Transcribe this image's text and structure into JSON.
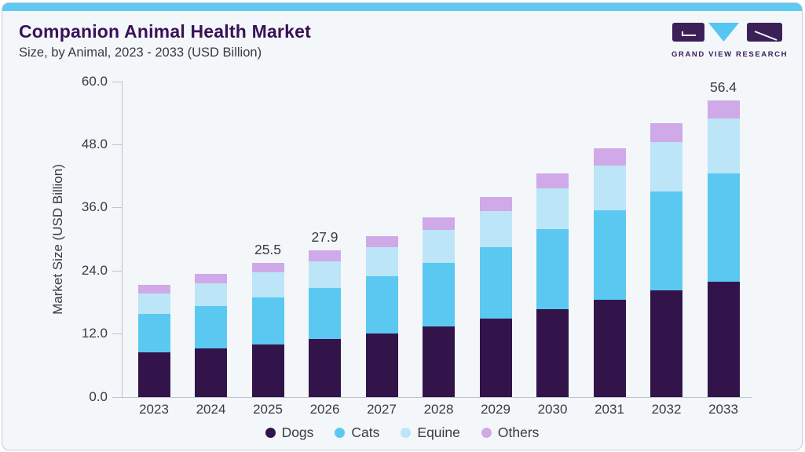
{
  "page": {
    "title": "Companion Animal Health Market",
    "subtitle": "Size, by Animal, 2023 - 2033 (USD Billion)",
    "brand": {
      "name": "GRAND VIEW RESEARCH"
    }
  },
  "colors": {
    "accent_bar": "#5ec9f2",
    "card_bg": "#f3f7fa",
    "card_border": "#c9cbd6",
    "title_text": "#3a1157",
    "body_text": "#3a3a43",
    "axis_line": "#bfc2cb",
    "dogs": "#32144b",
    "cats": "#5bc8f2",
    "equine": "#bde5f8",
    "others": "#d0a9e8",
    "logo_purple": "#3b2058",
    "logo_blue": "#55c6f0"
  },
  "chart_data": {
    "type": "bar",
    "stacked": true,
    "title": "Companion Animal Health Market",
    "subtitle": "Size, by Animal, 2023 - 2033 (USD Billion)",
    "xlabel": "",
    "ylabel": "Market Size (USD Billion)",
    "ylim": [
      0,
      60
    ],
    "ytick_values": [
      0,
      12,
      24,
      36,
      48,
      60
    ],
    "ytick_labels": [
      "0.0",
      "12.0",
      "24.0",
      "36.0",
      "48.0",
      "60.0"
    ],
    "grid": false,
    "legend_position": "bottom",
    "categories": [
      "2023",
      "2024",
      "2025",
      "2026",
      "2027",
      "2028",
      "2029",
      "2030",
      "2031",
      "2032",
      "2033"
    ],
    "series": [
      {
        "name": "Dogs",
        "color_key": "dogs",
        "values": [
          8.4,
          9.2,
          10.0,
          10.9,
          12.0,
          13.3,
          14.8,
          16.6,
          18.4,
          20.2,
          21.9
        ]
      },
      {
        "name": "Cats",
        "color_key": "cats",
        "values": [
          7.4,
          8.1,
          8.9,
          9.8,
          10.9,
          12.1,
          13.7,
          15.2,
          17.0,
          18.8,
          20.5
        ]
      },
      {
        "name": "Equine",
        "color_key": "equine",
        "values": [
          3.8,
          4.2,
          4.7,
          5.1,
          5.5,
          6.3,
          6.8,
          7.9,
          8.6,
          9.5,
          10.5
        ]
      },
      {
        "name": "Others",
        "color_key": "others",
        "values": [
          1.6,
          1.8,
          1.9,
          2.1,
          2.2,
          2.4,
          2.7,
          2.8,
          3.2,
          3.5,
          3.5
        ]
      }
    ],
    "totals_labeled": {
      "2025": "25.5",
      "2026": "27.9",
      "2033": "56.4"
    }
  }
}
